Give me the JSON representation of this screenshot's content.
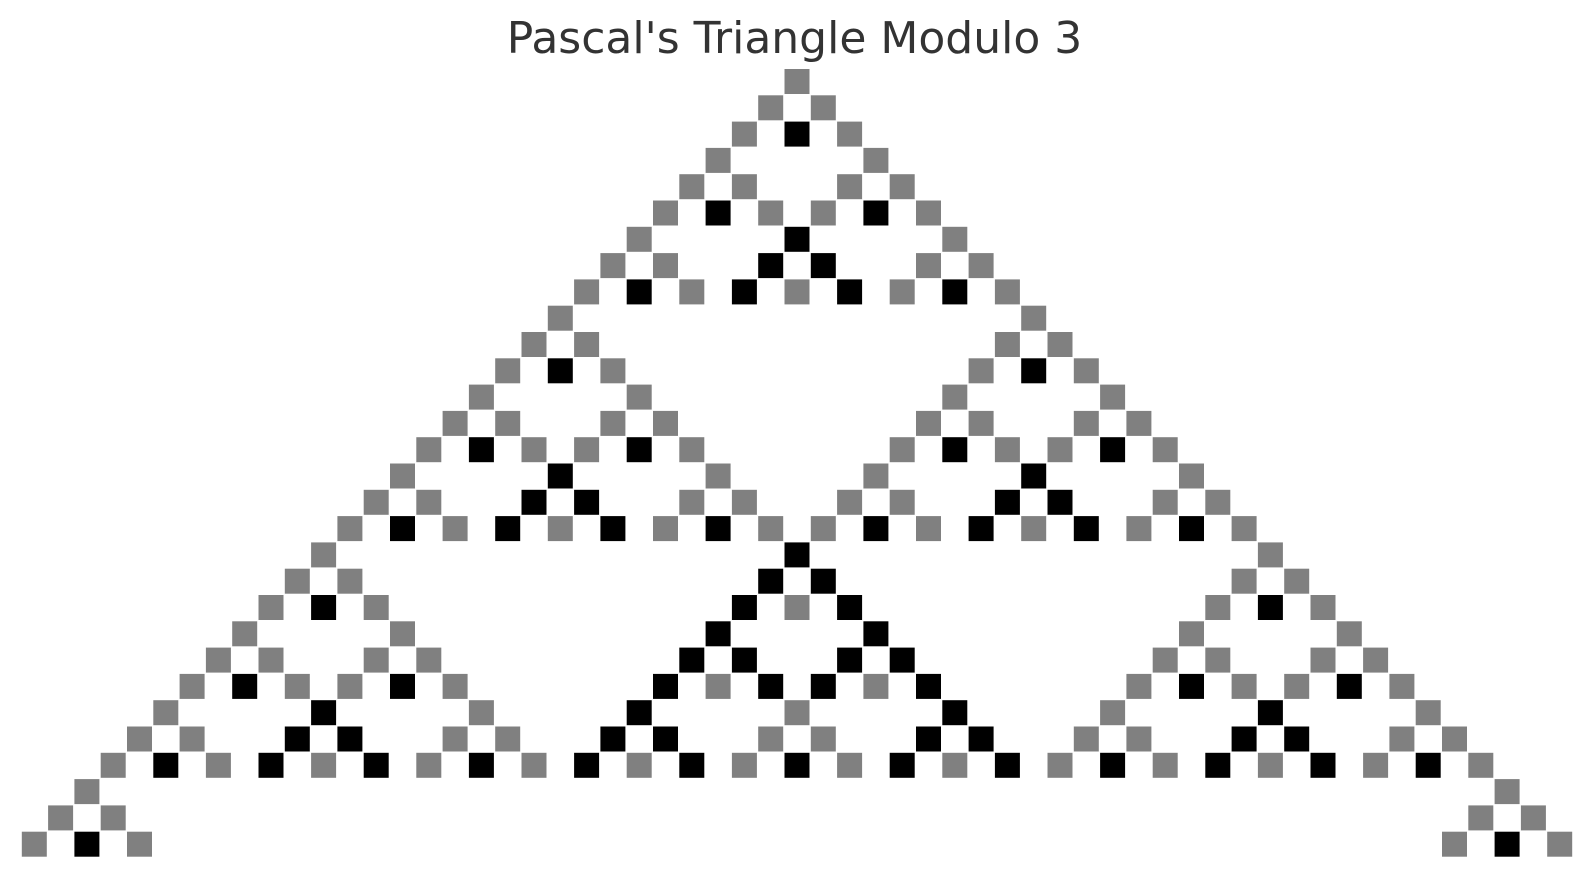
{
  "chart_data": {
    "type": "heatmap",
    "title": "Pascal's Triangle Modulo 3",
    "modulus": 3,
    "rows": 30,
    "description_of_values": "Entry k of row n is C(n,k) mod 3; value 0 is blank, 1 is gray, 2 is black",
    "grid": false,
    "axes_visible": false,
    "value_colors": {
      "0": "#ffffff",
      "1": "#808080",
      "2": "#000000"
    }
  }
}
